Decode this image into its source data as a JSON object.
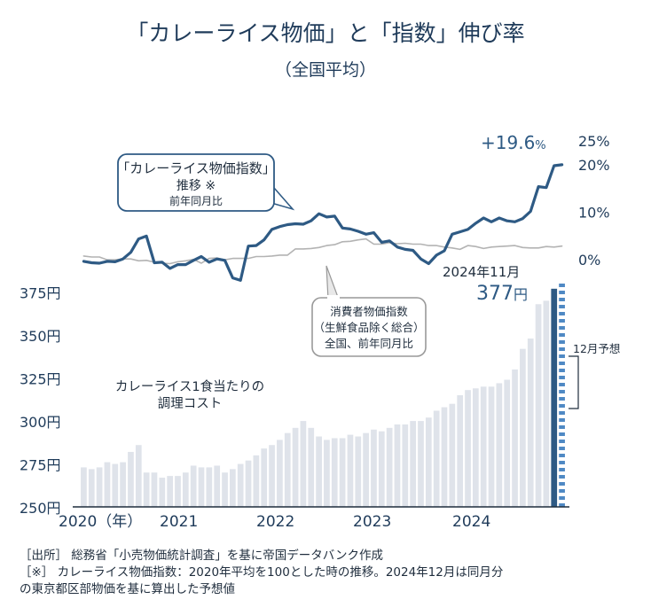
{
  "title": "「カレーライス物価」と「指数」伸び率",
  "subtitle": "（全国平均）",
  "chart_data": {
    "type": "bar+line",
    "bar_series": {
      "name": "カレーライス1食当たりの調理コスト",
      "unit": "円",
      "ylim": [
        250,
        380
      ],
      "yticks": [
        "250円",
        "275円",
        "300円",
        "325円",
        "350円",
        "375円"
      ],
      "values": [
        273,
        272,
        273,
        276,
        275,
        276,
        282,
        286,
        270,
        270,
        267,
        268,
        268,
        270,
        274,
        273,
        273,
        274,
        270,
        272,
        275,
        277,
        280,
        284,
        286,
        289,
        293,
        296,
        300,
        296,
        291,
        289,
        290,
        290,
        292,
        291,
        293,
        295,
        294,
        296,
        298,
        298,
        300,
        300,
        302,
        306,
        308,
        310,
        315,
        318,
        319,
        320,
        320,
        322,
        324,
        330,
        342,
        348,
        368,
        370,
        377,
        380
      ],
      "forecast_label": "12月予想"
    },
    "line_series": [
      {
        "name": "「カレーライス物価指数」推移 ※前年同月比",
        "unit": "%",
        "values": [
          -0.5,
          -0.8,
          -0.9,
          -0.5,
          -0.6,
          0.0,
          1.4,
          4.2,
          4.8,
          -0.8,
          -0.7,
          -2.0,
          -1.2,
          -1.2,
          -0.3,
          0.5,
          -0.7,
          0.0,
          -0.3,
          -4.0,
          -4.5,
          2.7,
          2.8,
          4.0,
          6.2,
          6.8,
          7.2,
          7.4,
          7.3,
          8.0,
          9.5,
          8.8,
          9.0,
          6.5,
          6.3,
          5.8,
          5.2,
          5.5,
          3.5,
          3.8,
          2.5,
          2.0,
          1.8,
          0.0,
          -1.0,
          0.8,
          1.7,
          5.2,
          5.7,
          6.2,
          7.5,
          8.6,
          7.8,
          8.6,
          8.0,
          7.8,
          8.5,
          10.0,
          15.2,
          15.0,
          19.6,
          19.8
        ]
      },
      {
        "name": "消費者物価指数（生鮮食品除く総合）全国、前年同月比",
        "unit": "%",
        "values": [
          0.6,
          0.4,
          0.4,
          -0.2,
          -0.2,
          0.0,
          0.0,
          -0.4,
          -0.3,
          -0.7,
          -0.9,
          -1.0,
          -0.6,
          -0.4,
          -0.1,
          -0.9,
          0.1,
          0.2,
          -0.2,
          0.1,
          0.1,
          0.1,
          0.5,
          0.5,
          0.6,
          0.8,
          0.8,
          2.1,
          2.1,
          2.2,
          2.4,
          2.8,
          3.0,
          3.6,
          3.7,
          4.0,
          4.2,
          3.1,
          3.1,
          3.4,
          3.2,
          3.3,
          3.1,
          3.1,
          2.8,
          2.8,
          2.5,
          2.3,
          2.0,
          2.8,
          2.6,
          2.2,
          2.5,
          2.6,
          2.7,
          2.8,
          2.4,
          2.3,
          2.3,
          2.6,
          2.5,
          2.7
        ]
      }
    ],
    "line_ylim": [
      -5,
      25
    ],
    "line_yticks": [
      "0%",
      "10%",
      "20%",
      "25%"
    ],
    "x_labels": [
      "2020（年）",
      "2021",
      "2022",
      "2023",
      "2024"
    ],
    "annotations": {
      "peak_pct": "+19.6",
      "peak_pct_suffix": "%",
      "curry_box": [
        "「カレーライス物価指数」",
        "推移 ※",
        "前年同月比"
      ],
      "cpi_box": [
        "消費者物価指数",
        "（生鮮食品除く総合）",
        "全国、前年同月比"
      ],
      "latest_date": "2024年11月",
      "latest_value": "377",
      "latest_unit": "円",
      "bar_label": [
        "カレーライス1食当たりの",
        "調理コスト"
      ],
      "forecast": "12月予想"
    },
    "colors": {
      "line_curry": "#2e5a84",
      "line_cpi": "#b3b3b3",
      "bar": "#dfe3ea",
      "bar_latest": "#2e5a84",
      "bar_forecast": "#4f89c4",
      "text": "#1f3b5a"
    }
  },
  "notes": [
    "［出所］ 総務省「小売物価統計調査」を基に帝国データバンク作成",
    "［※］ カレーライス物価指数：2020年平均を100とした時の推移。2024年12月は同月分",
    "の東京都区部物価を基に算出した予想値"
  ]
}
